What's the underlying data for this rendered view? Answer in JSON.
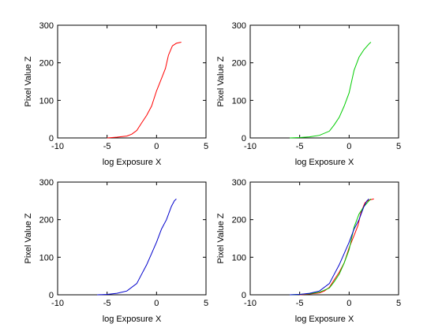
{
  "chart_data": [
    {
      "type": "line",
      "xlabel": "log Exposure X",
      "ylabel": "Pixel Value Z",
      "xlim": [
        -10,
        5
      ],
      "ylim": [
        0,
        300
      ],
      "xticks": [
        -10,
        -5,
        0,
        5
      ],
      "yticks": [
        0,
        100,
        200,
        300
      ],
      "grid": false,
      "series": [
        {
          "color": "#ff0000",
          "x": [
            -5.0,
            -4.0,
            -3.0,
            -2.5,
            -2.0,
            -1.5,
            -1.0,
            -0.5,
            0.0,
            0.3,
            0.6,
            0.9,
            1.2,
            1.6,
            2.0,
            2.5
          ],
          "y": [
            0,
            2,
            5,
            10,
            20,
            40,
            60,
            85,
            125,
            145,
            165,
            185,
            220,
            245,
            252,
            255
          ]
        }
      ]
    },
    {
      "type": "line",
      "xlabel": "log Exposure X",
      "ylabel": "Pixel Value Z",
      "xlim": [
        -10,
        5
      ],
      "ylim": [
        0,
        300
      ],
      "xticks": [
        -10,
        -5,
        0,
        5
      ],
      "yticks": [
        0,
        100,
        200,
        300
      ],
      "grid": false,
      "series": [
        {
          "color": "#00cc00",
          "x": [
            -6.0,
            -5.0,
            -4.0,
            -3.0,
            -2.0,
            -1.5,
            -1.0,
            -0.5,
            0.0,
            0.5,
            1.0,
            1.5,
            2.0,
            2.2
          ],
          "y": [
            0,
            1,
            3,
            7,
            18,
            35,
            55,
            85,
            120,
            180,
            215,
            235,
            250,
            255
          ]
        }
      ]
    },
    {
      "type": "line",
      "xlabel": "log Exposure X",
      "ylabel": "Pixel Value Z",
      "xlim": [
        -10,
        5
      ],
      "ylim": [
        0,
        300
      ],
      "xticks": [
        -10,
        -5,
        0,
        5
      ],
      "yticks": [
        0,
        100,
        200,
        300
      ],
      "grid": false,
      "series": [
        {
          "color": "#0000cc",
          "x": [
            -6.0,
            -5.0,
            -4.0,
            -3.0,
            -2.0,
            -1.5,
            -1.0,
            -0.5,
            0.0,
            0.5,
            1.0,
            1.5,
            1.8,
            2.0
          ],
          "y": [
            0,
            1,
            4,
            10,
            30,
            55,
            80,
            110,
            140,
            175,
            200,
            235,
            250,
            255
          ]
        }
      ]
    },
    {
      "type": "line",
      "xlabel": "log Exposure X",
      "ylabel": "Pixel Value Z",
      "xlim": [
        -10,
        5
      ],
      "ylim": [
        0,
        300
      ],
      "xticks": [
        -10,
        -5,
        0,
        5
      ],
      "yticks": [
        0,
        100,
        200,
        300
      ],
      "grid": false,
      "series": [
        {
          "color": "#ff0000",
          "x": [
            -5.0,
            -4.0,
            -3.0,
            -2.5,
            -2.0,
            -1.5,
            -1.0,
            -0.5,
            0.0,
            0.3,
            0.6,
            0.9,
            1.2,
            1.6,
            2.0,
            2.5
          ],
          "y": [
            0,
            2,
            5,
            10,
            20,
            40,
            60,
            85,
            125,
            145,
            165,
            185,
            220,
            245,
            252,
            255
          ]
        },
        {
          "color": "#00cc00",
          "x": [
            -6.0,
            -5.0,
            -4.0,
            -3.0,
            -2.0,
            -1.5,
            -1.0,
            -0.5,
            0.0,
            0.5,
            1.0,
            1.5,
            2.0,
            2.2
          ],
          "y": [
            0,
            1,
            3,
            7,
            18,
            35,
            55,
            85,
            120,
            180,
            215,
            235,
            250,
            255
          ]
        },
        {
          "color": "#0000cc",
          "x": [
            -6.0,
            -5.0,
            -4.0,
            -3.0,
            -2.0,
            -1.5,
            -1.0,
            -0.5,
            0.0,
            0.5,
            1.0,
            1.5,
            1.8,
            2.0
          ],
          "y": [
            0,
            1,
            4,
            10,
            30,
            55,
            80,
            110,
            140,
            175,
            200,
            235,
            250,
            255
          ]
        }
      ]
    }
  ]
}
